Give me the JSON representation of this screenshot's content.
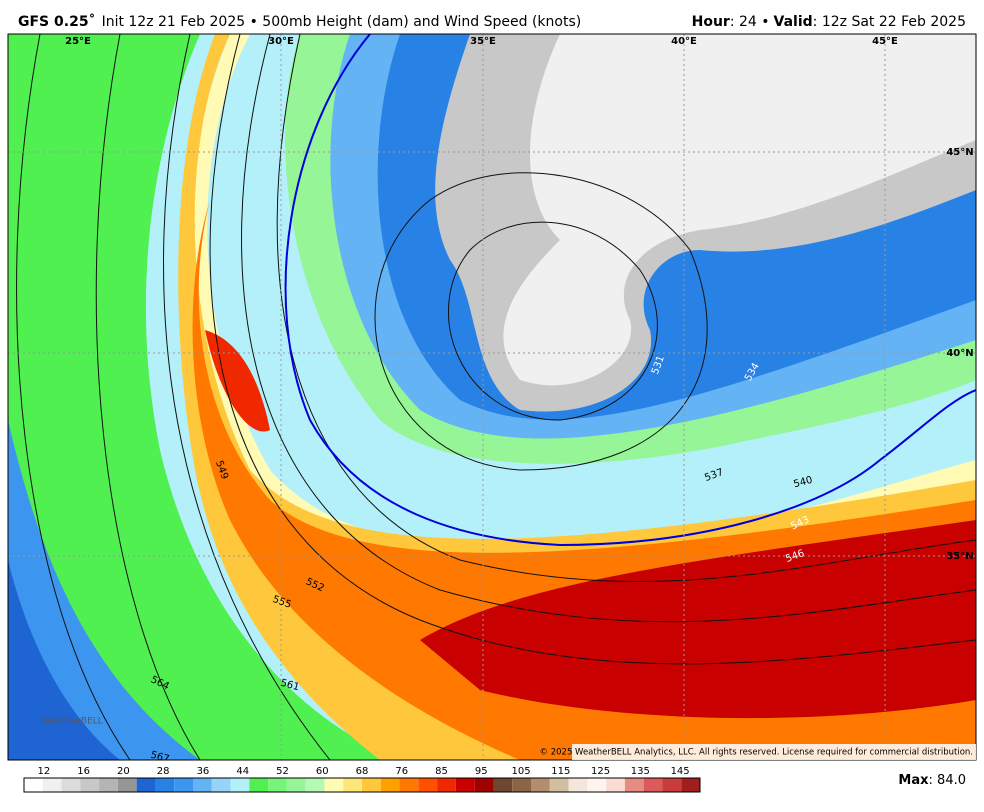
{
  "header": {
    "model": "GFS 0.25˚",
    "description": "Init 12z 21 Feb 2025 • 500mb Height (dam) and Wind Speed (knots)",
    "hour_label": "Hour",
    "hour_value": ": 24 •",
    "valid_label": "Valid",
    "valid_value": ": 12z Sat 22 Feb 2025"
  },
  "map": {
    "longitude_labels": [
      "25°E",
      "30°E",
      "35°E",
      "40°E",
      "45°E"
    ],
    "latitude_labels": [
      "45°N",
      "40°N",
      "35°N"
    ],
    "contour_labels": [
      "549",
      "552",
      "555",
      "561",
      "564",
      "567",
      "531",
      "534",
      "537",
      "540",
      "543",
      "546"
    ],
    "logo": "WeatherBELL",
    "copyright": "© 2025 WeatherBELL Analytics, LLC. All rights reserved. License required for commercial distribution."
  },
  "colorbar": {
    "labels": [
      12,
      16,
      20,
      28,
      36,
      44,
      52,
      60,
      68,
      76,
      85,
      95,
      105,
      115,
      125,
      135,
      145
    ],
    "colors": [
      "#ffffff",
      "#f0f0f0",
      "#dcdcdc",
      "#c8c8c8",
      "#b4b4b4",
      "#969696",
      "#1e64d2",
      "#2882e6",
      "#3c96f0",
      "#64b4f5",
      "#96d2fa",
      "#b4f0fa",
      "#50f050",
      "#78f578",
      "#96f596",
      "#b4fab4",
      "#fffab4",
      "#ffe678",
      "#ffc83c",
      "#ffa000",
      "#ff7800",
      "#ff5000",
      "#f02800",
      "#c80000",
      "#a00000",
      "#6e4632",
      "#8c6446",
      "#b48c6e",
      "#d2bea0",
      "#f5e6dc",
      "#fff5f0",
      "#fadcd2",
      "#e68c82",
      "#dc5a5a",
      "#c83c3c",
      "#a01e1e"
    ]
  },
  "max": {
    "label": "Max",
    "value": ": 84.0"
  }
}
